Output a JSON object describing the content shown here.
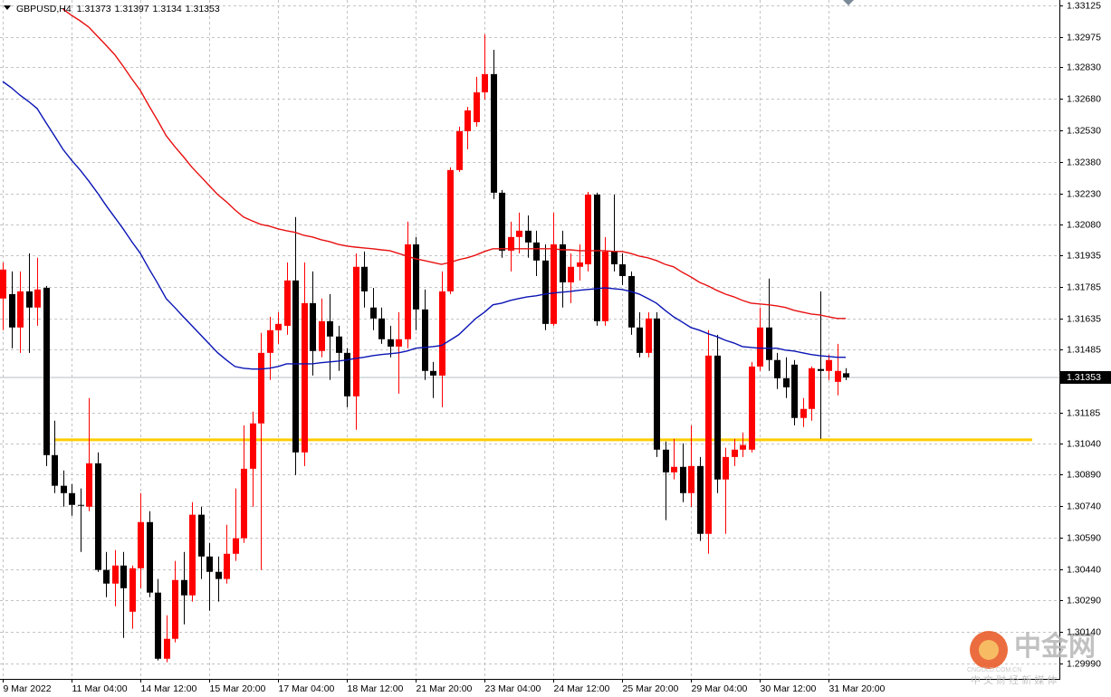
{
  "chart_data": {
    "type": "candlestick",
    "symbol": "GBPUSD,H4",
    "categories": [
      "9 Mar 2022",
      null,
      null,
      null,
      null,
      null,
      null,
      null,
      "11 Mar 04:00",
      null,
      null,
      null,
      null,
      null,
      null,
      null,
      "14 Mar 12:00",
      null,
      null,
      null,
      null,
      null,
      null,
      null,
      "15 Mar 20:00",
      null,
      null,
      null,
      null,
      null,
      null,
      null,
      "17 Mar 04:00",
      null,
      null,
      null,
      null,
      null,
      null,
      null,
      "18 Mar 12:00",
      null,
      null,
      null,
      null,
      null,
      null,
      null,
      "21 Mar 20:00",
      null,
      null,
      null,
      null,
      null,
      null,
      null,
      "23 Mar 04:00",
      null,
      null,
      null,
      null,
      null,
      null,
      null,
      "24 Mar 12:00",
      null,
      null,
      null,
      null,
      null,
      null,
      null,
      "25 Mar 20:00",
      null,
      null,
      null,
      null,
      null,
      null,
      null,
      "29 Mar 04:00",
      null,
      null,
      null,
      null,
      null,
      null,
      null,
      "30 Mar 12:00",
      null,
      null,
      null,
      null,
      null,
      null,
      null,
      "31 Mar 20:00",
      null,
      null
    ],
    "open": [
      1.31729,
      1.3175,
      1.31591,
      1.31763,
      1.31686,
      1.3178,
      1.30983,
      1.30837,
      1.30802,
      1.30746,
      1.30737,
      1.30944,
      1.30436,
      1.30371,
      1.30457,
      1.30237,
      1.30444,
      1.30664,
      1.30328,
      1.30013,
      1.30108,
      1.30388,
      1.30315,
      1.30699,
      1.305,
      1.30427,
      1.30393,
      1.30513,
      1.30587,
      1.30918,
      1.31134,
      1.3147,
      1.31578,
      1.31599,
      1.31815,
      1.30996,
      1.31707,
      1.31479,
      1.31621,
      1.31548,
      1.3147,
      1.31263,
      1.3188,
      1.31686,
      1.31634,
      1.31535,
      1.315,
      1.31535,
      1.31987,
      1.31677,
      1.31384,
      1.31362,
      1.31763,
      1.32341,
      1.32526,
      1.32569,
      1.32711,
      1.32798,
      1.32233,
      1.31957,
      1.32022,
      1.32052,
      1.31996,
      1.3191,
      1.31608,
      1.31987,
      1.31806,
      1.3188,
      1.31892,
      1.32224,
      1.31621,
      1.31953,
      1.31892,
      1.31836,
      1.31591,
      1.3147,
      1.31634,
      1.31009,
      1.30901,
      1.30927,
      1.30802,
      1.30931,
      1.30608,
      1.31457,
      1.30867,
      1.30974,
      1.31009,
      1.31009,
      1.31405,
      1.31591,
      1.31436,
      1.31349,
      1.31414,
      1.3116,
      1.31203,
      1.31393,
      1.31384,
      1.31332,
      1.31373
    ],
    "high": [
      1.31901,
      1.31858,
      1.31858,
      1.31944,
      1.31923,
      1.31789,
      1.31147,
      1.3091,
      1.30845,
      1.30824,
      1.31255,
      1.30996,
      1.30522,
      1.30531,
      1.30522,
      1.30457,
      1.30802,
      1.30716,
      1.30393,
      1.3022,
      1.30479,
      1.30522,
      1.30759,
      1.30737,
      1.30565,
      1.305,
      1.30651,
      1.30824,
      1.31125,
      1.3119,
      1.31565,
      1.31642,
      1.31664,
      1.31901,
      1.32117,
      1.31901,
      1.31858,
      1.31729,
      1.3175,
      1.31599,
      1.31492,
      1.31944,
      1.31953,
      1.3178,
      1.31686,
      1.31599,
      1.31664,
      1.32095,
      1.32022,
      1.31772,
      1.31427,
      1.31858,
      1.32354,
      1.32548,
      1.32642,
      1.32785,
      1.32987,
      1.32914,
      1.32246,
      1.32095,
      1.32138,
      1.32125,
      1.32052,
      1.31987,
      1.32138,
      1.32052,
      1.31944,
      1.31987,
      1.32237,
      1.32233,
      1.32022,
      1.32224,
      1.31944,
      1.31858,
      1.31664,
      1.31664,
      1.31664,
      1.31048,
      1.31061,
      1.31039,
      1.31125,
      1.30974,
      1.31578,
      1.31556,
      1.31018,
      1.31061,
      1.31091,
      1.31427,
      1.31686,
      1.31824,
      1.3147,
      1.31449,
      1.31436,
      1.31255,
      1.31405,
      1.31763,
      1.31461,
      1.31513,
      1.31397
    ],
    "low": [
      1.31578,
      1.31492,
      1.3147,
      1.3147,
      1.31599,
      1.30931,
      1.30802,
      1.30737,
      1.30694,
      1.30522,
      1.30716,
      1.30427,
      1.30306,
      1.30263,
      1.30112,
      1.30156,
      1.30349,
      1.30306,
      1.30005,
      1.29996,
      1.30091,
      1.30177,
      1.30285,
      1.30393,
      1.30242,
      1.30285,
      1.30371,
      1.30479,
      1.30565,
      1.30737,
      1.30436,
      1.31341,
      1.31513,
      1.31556,
      1.30888,
      1.30931,
      1.31362,
      1.31449,
      1.31341,
      1.31384,
      1.31211,
      1.31104,
      1.31686,
      1.31578,
      1.31513,
      1.31449,
      1.31276,
      1.31492,
      1.31578,
      1.31341,
      1.31255,
      1.31211,
      1.3175,
      1.32332,
      1.3244,
      1.32548,
      1.32677,
      1.32203,
      1.31923,
      1.31858,
      1.31944,
      1.31923,
      1.31836,
      1.31578,
      1.31599,
      1.31686,
      1.31707,
      1.31815,
      1.31858,
      1.31599,
      1.31599,
      1.31858,
      1.31793,
      1.31556,
      1.31449,
      1.31449,
      1.30974,
      1.30673,
      1.30867,
      1.30759,
      1.30737,
      1.30574,
      1.30513,
      1.30802,
      1.30608,
      1.30931,
      1.30974,
      1.30996,
      1.31384,
      1.31384,
      1.31298,
      1.31255,
      1.31125,
      1.31117,
      1.31147,
      1.31061,
      1.31341,
      1.31268,
      1.3134
    ],
    "close": [
      1.31867,
      1.31591,
      1.31763,
      1.31686,
      1.31772,
      1.30983,
      1.30837,
      1.30802,
      1.30746,
      1.30742,
      1.30944,
      1.30436,
      1.30371,
      1.30457,
      1.30349,
      1.30444,
      1.30664,
      1.30328,
      1.30013,
      1.30108,
      1.30388,
      1.30315,
      1.30699,
      1.305,
      1.30427,
      1.30393,
      1.30513,
      1.30587,
      1.30918,
      1.31134,
      1.3147,
      1.31578,
      1.31608,
      1.31815,
      1.30996,
      1.31707,
      1.31479,
      1.31621,
      1.31548,
      1.3147,
      1.31263,
      1.3188,
      1.31763,
      1.31634,
      1.31535,
      1.315,
      1.31535,
      1.31987,
      1.31677,
      1.31384,
      1.31362,
      1.31763,
      1.32341,
      1.32526,
      1.32625,
      1.32711,
      1.32798,
      1.32233,
      1.31957,
      1.32022,
      1.32052,
      1.31996,
      1.3191,
      1.31608,
      1.31987,
      1.31806,
      1.3188,
      1.31901,
      1.32224,
      1.31621,
      1.31953,
      1.31892,
      1.31836,
      1.31591,
      1.3147,
      1.31634,
      1.31009,
      1.30901,
      1.30927,
      1.30802,
      1.30931,
      1.30608,
      1.31457,
      1.30867,
      1.30974,
      1.31009,
      1.31031,
      1.31405,
      1.31591,
      1.31436,
      1.31349,
      1.31306,
      1.3116,
      1.31203,
      1.31397,
      1.31384,
      1.31436,
      1.31384,
      1.31353
    ],
    "up_color": "#ff0000",
    "down_color": "#000000",
    "moving_averages": [
      {
        "color": "#e81010",
        "values": [
          null,
          null,
          null,
          null,
          null,
          null,
          null,
          1.33108,
          1.33078,
          1.33052,
          1.33022,
          1.32979,
          1.32936,
          1.32892,
          1.32836,
          1.32776,
          1.3272,
          1.32647,
          1.32578,
          1.32505,
          1.32453,
          1.32405,
          1.32354,
          1.32311,
          1.32267,
          1.32224,
          1.3219,
          1.32151,
          1.32117,
          1.32099,
          1.32082,
          1.32074,
          1.32061,
          1.32052,
          1.32044,
          1.3203,
          1.32022,
          1.32009,
          1.32,
          1.31987,
          1.31979,
          1.31974,
          1.3197,
          1.31966,
          1.31961,
          1.31957,
          1.31944,
          1.31931,
          1.31918,
          1.3191,
          1.31901,
          1.31892,
          1.31901,
          1.31914,
          1.31923,
          1.31936,
          1.31953,
          1.31966,
          1.31966,
          1.31966,
          1.31966,
          1.31966,
          1.31966,
          1.31966,
          1.31966,
          1.31961,
          1.31961,
          1.31957,
          1.31957,
          1.31957,
          1.31957,
          1.31953,
          1.31953,
          1.31944,
          1.31931,
          1.31923,
          1.3191,
          1.31892,
          1.3188,
          1.31854,
          1.31832,
          1.31806,
          1.31789,
          1.31768,
          1.3175,
          1.31737,
          1.3172,
          1.31707,
          1.31703,
          1.31699,
          1.31694,
          1.31686,
          1.31673,
          1.31664,
          1.31655,
          1.31651,
          1.31642,
          1.31634,
          1.31634
        ]
      },
      {
        "color": "#0a14b4",
        "values": [
          1.32763,
          1.32733,
          1.32698,
          1.32668,
          1.32634,
          1.32569,
          1.32505,
          1.3244,
          1.32388,
          1.32341,
          1.32289,
          1.32233,
          1.32173,
          1.32117,
          1.32061,
          1.32,
          1.31944,
          1.31871,
          1.31802,
          1.31729,
          1.31686,
          1.31642,
          1.31599,
          1.31556,
          1.31513,
          1.3147,
          1.31436,
          1.31405,
          1.31397,
          1.31393,
          1.31393,
          1.31397,
          1.31405,
          1.31418,
          1.31418,
          1.31418,
          1.31418,
          1.31423,
          1.31427,
          1.31431,
          1.31436,
          1.31444,
          1.31449,
          1.31457,
          1.31462,
          1.31466,
          1.3147,
          1.31479,
          1.31492,
          1.31496,
          1.315,
          1.31505,
          1.3153,
          1.31556,
          1.31595,
          1.31634,
          1.31664,
          1.31699,
          1.31707,
          1.3172,
          1.31729,
          1.31737,
          1.31742,
          1.3175,
          1.31755,
          1.31759,
          1.31763,
          1.31768,
          1.31772,
          1.31776,
          1.3178,
          1.31776,
          1.31772,
          1.31763,
          1.3175,
          1.31729,
          1.31707,
          1.31673,
          1.31642,
          1.31617,
          1.31591,
          1.31578,
          1.31561,
          1.31548,
          1.3153,
          1.31517,
          1.315,
          1.31496,
          1.31492,
          1.31492,
          1.31492,
          1.31483,
          1.31479,
          1.3147,
          1.31462,
          1.31457,
          1.31453,
          1.31449,
          1.31449
        ]
      }
    ],
    "level_line": {
      "value": 1.31056,
      "color": "#ffcc00"
    },
    "ylim": [
      1.29917,
      1.33151
    ],
    "yticks": [
      1.33125,
      1.32975,
      {
        "value": 1.3283,
        "label": "1.32830"
      },
      {
        "value": 1.3268,
        "label": "1.32680"
      },
      {
        "value": 1.3253,
        "label": "1.32530"
      },
      {
        "value": 1.3238,
        "label": "1.32380"
      },
      {
        "value": 1.3223,
        "label": "1.32230"
      },
      {
        "value": 1.3208,
        "label": "1.32080"
      },
      1.31935,
      1.31785,
      1.31635,
      1.31485,
      1.31185,
      {
        "value": 1.3104,
        "label": "1.31040"
      },
      {
        "value": 1.3089,
        "label": "1.30890"
      },
      {
        "value": 1.3074,
        "label": "1.30740"
      },
      {
        "value": 1.3059,
        "label": "1.30590"
      },
      {
        "value": 1.3044,
        "label": "1.30440"
      },
      {
        "value": 1.3029,
        "label": "1.30290"
      },
      {
        "value": 1.3014,
        "label": "1.30140"
      },
      {
        "value": 1.2999,
        "label": "1.29990"
      }
    ],
    "grid": true,
    "watermark": {
      "name": "中金网",
      "url": "CNGOLD.COM.CN",
      "tagline": "中 文 财 经 新 媒 体"
    }
  }
}
